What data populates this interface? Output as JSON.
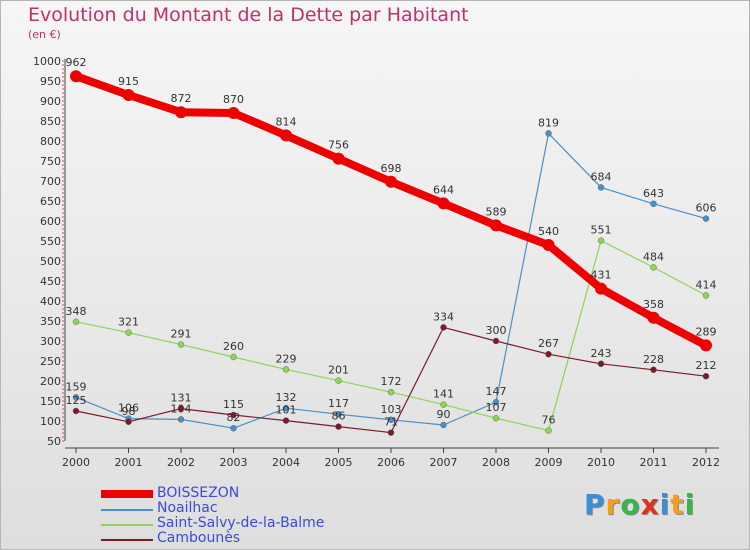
{
  "header": {
    "title": "Evolution du Montant de la Dette par Habitant",
    "subtitle": "(en €)"
  },
  "brand": {
    "letters": [
      "P",
      "r",
      "o",
      "x",
      "i",
      "t",
      "i"
    ],
    "colors": [
      "#3a8fd6",
      "#f2a01a",
      "#3ab54a",
      "#e0301e",
      "#3a8fd6",
      "#f2a01a",
      "#3ab54a"
    ]
  },
  "chart_data": {
    "type": "line",
    "title": "Evolution du Montant de la Dette par Habitant",
    "subtitle": "(en €)",
    "xlabel": "",
    "ylabel": "",
    "x": [
      "2000",
      "2001",
      "2002",
      "2003",
      "2004",
      "2005",
      "2006",
      "2007",
      "2008",
      "2009",
      "2010",
      "2011",
      "2012"
    ],
    "ylim": [
      50,
      1000
    ],
    "yticks": [
      50,
      100,
      150,
      200,
      250,
      300,
      350,
      400,
      450,
      500,
      550,
      600,
      650,
      700,
      750,
      800,
      850,
      900,
      950,
      1000
    ],
    "grid": false,
    "legend_position": "bottom-left",
    "series": [
      {
        "name": "BOISSEZON",
        "color": "#ee0000",
        "thick": true,
        "labels": true,
        "values": [
          962,
          915,
          872,
          870,
          814,
          756,
          698,
          644,
          589,
          540,
          431,
          358,
          289
        ]
      },
      {
        "name": "Noailhac",
        "color": "#4a90c8",
        "thick": false,
        "labels": true,
        "values": [
          159,
          106,
          104,
          82,
          132,
          117,
          103,
          90,
          147,
          819,
          684,
          643,
          606
        ]
      },
      {
        "name": "Saint-Salvy-de-la-Balme",
        "color": "#8ed455",
        "thick": false,
        "labels": true,
        "values": [
          348,
          321,
          291,
          260,
          229,
          201,
          172,
          141,
          107,
          76,
          551,
          484,
          414
        ]
      },
      {
        "name": "Cambounès",
        "color": "#7a1a2a",
        "thick": false,
        "labels": true,
        "values": [
          125,
          98,
          131,
          115,
          101,
          86,
          71,
          334,
          300,
          267,
          243,
          228,
          212
        ]
      }
    ]
  }
}
